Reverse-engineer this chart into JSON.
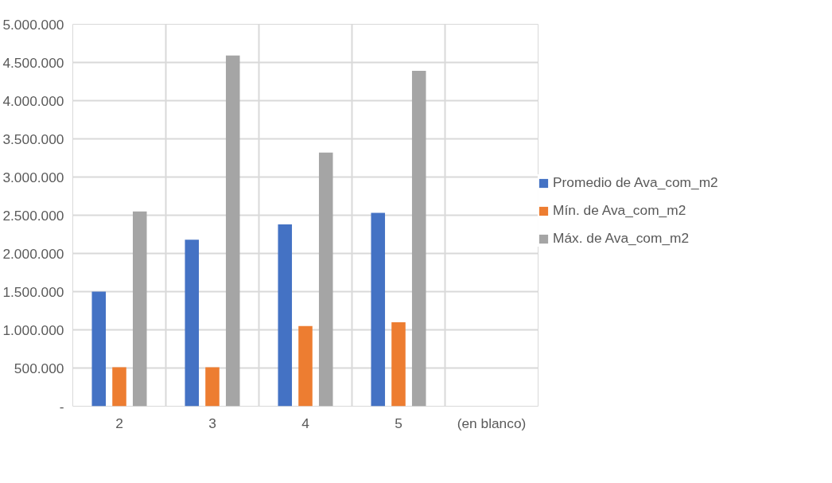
{
  "chart_data": {
    "type": "bar",
    "categories": [
      "2",
      "3",
      "4",
      "5",
      "(en blanco)"
    ],
    "series": [
      {
        "name": "Promedio de Ava_com_m2",
        "color": "#4472c4",
        "values": [
          1500000,
          2180000,
          2380000,
          2530000,
          null
        ]
      },
      {
        "name": "Mín. de Ava_com_m2",
        "color": "#ed7d31",
        "values": [
          510000,
          510000,
          1050000,
          1100000,
          null
        ]
      },
      {
        "name": "Máx. de Ava_com_m2",
        "color": "#a5a5a5",
        "values": [
          2550000,
          4590000,
          3320000,
          4390000,
          null
        ]
      }
    ],
    "ylim": [
      0,
      5000000
    ],
    "yticks": [
      {
        "value": 0,
        "label": "-"
      },
      {
        "value": 500000,
        "label": "500.000"
      },
      {
        "value": 1000000,
        "label": "1.000.000"
      },
      {
        "value": 1500000,
        "label": "1.500.000"
      },
      {
        "value": 2000000,
        "label": "2.000.000"
      },
      {
        "value": 2500000,
        "label": "2.500.000"
      },
      {
        "value": 3000000,
        "label": "3.000.000"
      },
      {
        "value": 3500000,
        "label": "3.500.000"
      },
      {
        "value": 4000000,
        "label": "4.000.000"
      },
      {
        "value": 4500000,
        "label": "4.500.000"
      },
      {
        "value": 5000000,
        "label": "5.000.000"
      }
    ],
    "grid": true,
    "legend": "right"
  }
}
